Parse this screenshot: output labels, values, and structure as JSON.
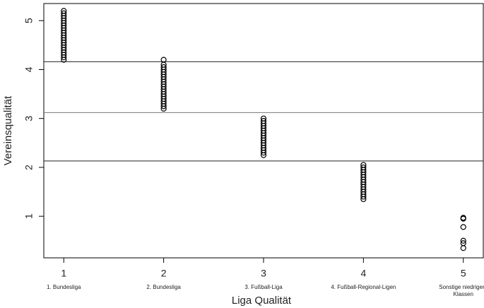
{
  "chart_data": {
    "type": "scatter",
    "x_label": "Liga Qualität",
    "y_label": "Vereinsqualität",
    "xlim": [
      0.8,
      5.2
    ],
    "ylim": [
      0.15,
      5.35
    ],
    "xticks": [
      1,
      2,
      3,
      4,
      5
    ],
    "yticks": [
      1,
      2,
      3,
      4,
      5
    ],
    "xtick_sublabels": [
      "1. Bundesliga",
      "2. Bundesliga",
      "3. Fußball-Liga",
      "4. Fußball-Regional-Ligen",
      "Sonstige niedrigere Klassen"
    ],
    "hlines": [
      4.16,
      3.12,
      2.13
    ],
    "color": "#000000",
    "series": [
      {
        "x": 1,
        "values": [
          4.2,
          4.25,
          4.3,
          4.35,
          4.4,
          4.45,
          4.5,
          4.55,
          4.6,
          4.65,
          4.7,
          4.75,
          4.8,
          4.85,
          4.9,
          4.95,
          5,
          5.05,
          5.1,
          5.15,
          5.2
        ]
      },
      {
        "x": 2,
        "values": [
          3.2,
          3.25,
          3.3,
          3.35,
          3.4,
          3.45,
          3.5,
          3.55,
          3.6,
          3.65,
          3.7,
          3.75,
          3.8,
          3.85,
          3.9,
          3.95,
          4,
          4.05,
          4.1,
          4.2
        ]
      },
      {
        "x": 3,
        "values": [
          2.25,
          2.3,
          2.35,
          2.4,
          2.45,
          2.5,
          2.55,
          2.6,
          2.65,
          2.7,
          2.75,
          2.8,
          2.85,
          2.9,
          2.95,
          3
        ]
      },
      {
        "x": 4,
        "values": [
          1.35,
          1.4,
          1.45,
          1.5,
          1.55,
          1.6,
          1.65,
          1.7,
          1.75,
          1.8,
          1.85,
          1.9,
          1.95,
          2,
          2.05
        ]
      },
      {
        "x": 5,
        "values": [
          0.35,
          0.45,
          0.5,
          0.78,
          0.95,
          0.97
        ]
      }
    ]
  }
}
